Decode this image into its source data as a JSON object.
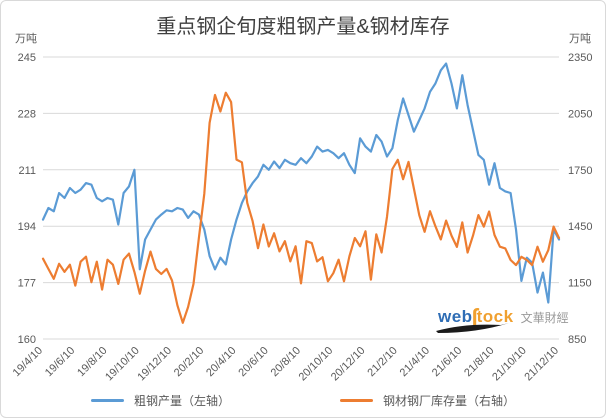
{
  "title": "重点钢企旬度粗钢产量&钢材库存",
  "left_axis_unit": "万吨",
  "right_axis_unit": "万吨",
  "legend": [
    {
      "label": "粗钢产量（左轴）",
      "color": "#5b9bd5"
    },
    {
      "label": "钢材钢厂库存量（右轴）",
      "color": "#ed7d31"
    }
  ],
  "watermark": {
    "logo_web": "web",
    "logo_s": "∫",
    "logo_tock": "tock",
    "brand": "文華財經"
  },
  "colors": {
    "title_text": "#3f3f3f",
    "axis_text": "#595959",
    "gridline": "#d9d9d9",
    "series_production": "#5b9bd5",
    "series_inventory": "#ed7d31",
    "background": "#ffffff"
  },
  "chart_data": {
    "type": "line",
    "title": "重点钢企旬度粗钢产量&钢材库存",
    "grid": "horizontal",
    "legend_position": "bottom",
    "x_frequency": "every 10 days (旬度), ticks every 2 months",
    "x_points_per_tick": 6,
    "x_tick_labels": [
      "19/4/10",
      "19/6/10",
      "19/8/10",
      "19/10/10",
      "19/12/10",
      "20/2/10",
      "20/4/10",
      "20/6/10",
      "20/8/10",
      "20/10/10",
      "20/12/10",
      "21/2/10",
      "21/4/10",
      "21/6/10",
      "21/8/10",
      "21/10/10",
      "21/12/10"
    ],
    "left_axis": {
      "unit": "万吨",
      "min": 160,
      "max": 245,
      "ticks": [
        245,
        228,
        211,
        194,
        177,
        160
      ]
    },
    "right_axis": {
      "unit": "万吨",
      "min": 850,
      "max": 2350,
      "ticks": [
        2350,
        2050,
        1750,
        1450,
        1150,
        850
      ]
    },
    "series": [
      {
        "name": "粗钢产量（左轴）",
        "axis": "left",
        "color": "#5b9bd5",
        "values": [
          196,
          199.5,
          198.5,
          204,
          202.5,
          205.5,
          204,
          205,
          207,
          206.5,
          202.5,
          201.5,
          202.5,
          202,
          194.5,
          204,
          206,
          211,
          181,
          190,
          193,
          196,
          197.5,
          198.8,
          198.5,
          199.5,
          199,
          196.5,
          198.5,
          197.5,
          193,
          185,
          181,
          184.5,
          182.5,
          190,
          196,
          201,
          204.5,
          207,
          209,
          212.5,
          211,
          213.5,
          211.5,
          214,
          213,
          212.5,
          214.5,
          213,
          215,
          218,
          216.5,
          217,
          216,
          214.5,
          216,
          212.5,
          210,
          220.5,
          218,
          216.5,
          221.5,
          219.5,
          215,
          217.5,
          226,
          232.5,
          227.5,
          222.5,
          226,
          229.5,
          234.5,
          237,
          241,
          243,
          237,
          229.5,
          239.5,
          230.5,
          223,
          215.5,
          214,
          206.5,
          213,
          205.5,
          204.5,
          204,
          193,
          177.5,
          184.5,
          183,
          174,
          180,
          171,
          193,
          190
        ]
      },
      {
        "name": "钢材钢厂库存量（右轴）",
        "axis": "right",
        "color": "#ed7d31",
        "values": [
          1277,
          1223,
          1170,
          1250,
          1207,
          1245,
          1134,
          1261,
          1288,
          1152,
          1261,
          1113,
          1272,
          1245,
          1143,
          1272,
          1304,
          1207,
          1091,
          1213,
          1315,
          1223,
          1196,
          1223,
          1161,
          1029,
          936,
          1020,
          1143,
          1389,
          1623,
          2000,
          2148,
          2060,
          2160,
          2110,
          1804,
          1790,
          1573,
          1477,
          1333,
          1459,
          1342,
          1412,
          1316,
          1370,
          1263,
          1343,
          1146,
          1370,
          1360,
          1263,
          1285,
          1157,
          1200,
          1272,
          1157,
          1290,
          1387,
          1343,
          1423,
          1166,
          1407,
          1310,
          1500,
          1754,
          1803,
          1700,
          1792,
          1650,
          1508,
          1420,
          1530,
          1450,
          1380,
          1480,
          1400,
          1340,
          1470,
          1310,
          1400,
          1509,
          1448,
          1528,
          1403,
          1341,
          1332,
          1270,
          1243,
          1287,
          1270,
          1243,
          1341,
          1261,
          1323,
          1448,
          1387
        ]
      }
    ]
  }
}
